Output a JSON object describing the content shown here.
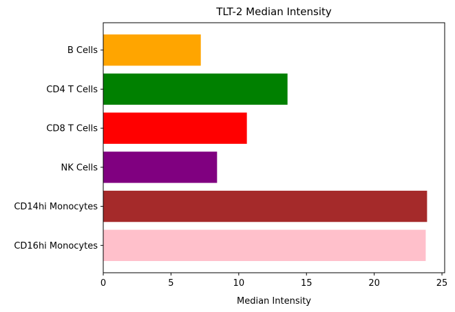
{
  "chart_data": {
    "type": "bar",
    "orientation": "horizontal",
    "title": "TLT-2 Median Intensity",
    "xlabel": "Median Intensity",
    "ylabel": "",
    "xlim": [
      0,
      25.2
    ],
    "xticks": [
      0,
      5,
      10,
      15,
      20,
      25
    ],
    "categories": [
      "B Cells",
      "CD4 T Cells",
      "CD8 T Cells",
      "NK Cells",
      "CD14hi Monocytes",
      "CD16hi Monocytes"
    ],
    "values": [
      7.2,
      13.6,
      10.6,
      8.4,
      23.9,
      23.8
    ],
    "colors": [
      "#FFA500",
      "#008000",
      "#FF0000",
      "#800080",
      "#A52A2A",
      "#FFC0CB"
    ],
    "grid": false,
    "legend": "none"
  }
}
